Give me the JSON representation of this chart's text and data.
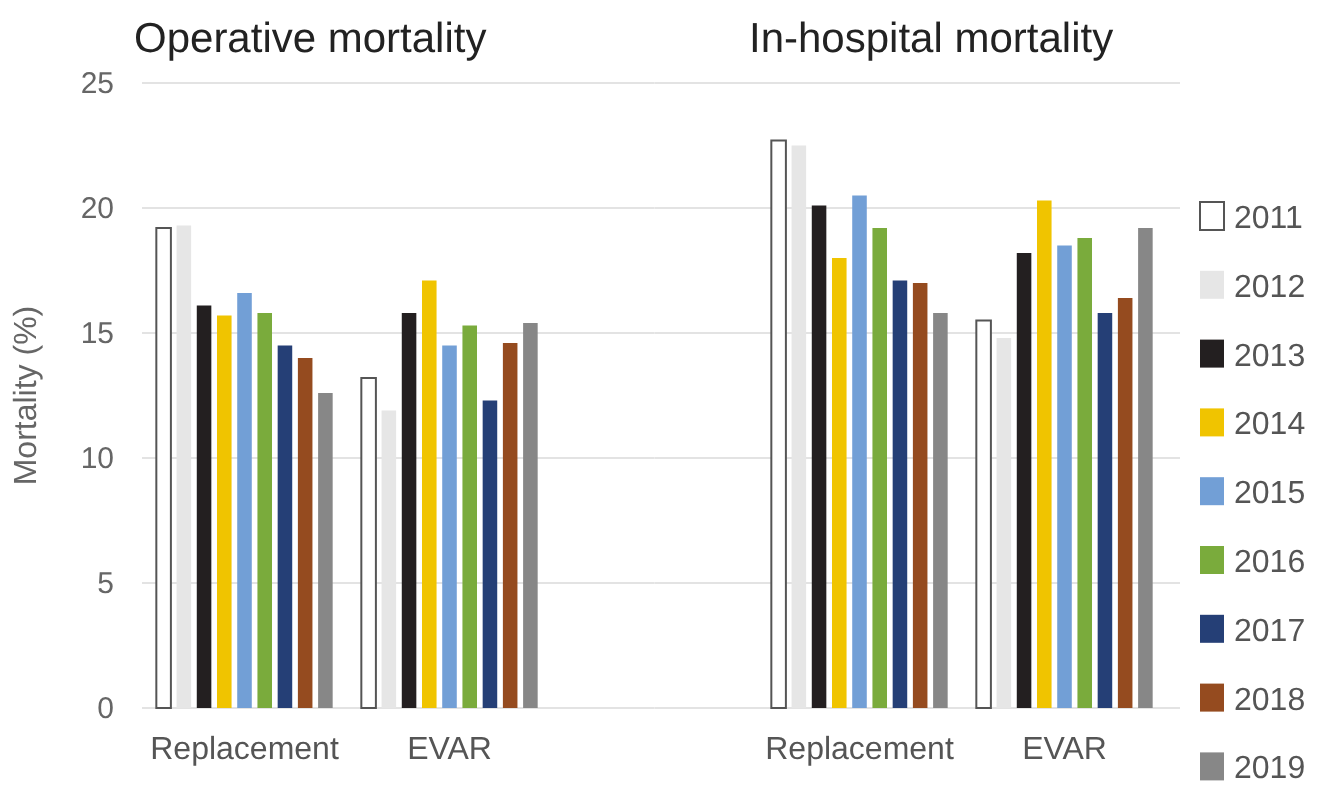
{
  "chart_data": [
    {
      "type": "bar",
      "title": "Operative mortality",
      "ylabel": "Mortality (%)",
      "categories": [
        "Replacement",
        "EVAR"
      ],
      "ylim": [
        0,
        25
      ],
      "yticks": [
        0,
        5,
        10,
        15,
        20,
        25
      ],
      "grid": "y",
      "legend": "right",
      "series": [
        {
          "name": "2011",
          "color": "#ffffff",
          "values": [
            19.2,
            13.2
          ]
        },
        {
          "name": "2012",
          "color": "#e6e6e6",
          "values": [
            19.3,
            11.9
          ]
        },
        {
          "name": "2013",
          "color": "#231f20",
          "values": [
            16.1,
            15.8
          ]
        },
        {
          "name": "2014",
          "color": "#f0c400",
          "values": [
            15.7,
            17.1
          ]
        },
        {
          "name": "2015",
          "color": "#729fd6",
          "values": [
            16.6,
            14.5
          ]
        },
        {
          "name": "2016",
          "color": "#7aab3c",
          "values": [
            15.8,
            15.3
          ]
        },
        {
          "name": "2017",
          "color": "#253f76",
          "values": [
            14.5,
            12.3
          ]
        },
        {
          "name": "2018",
          "color": "#954b1f",
          "values": [
            14.0,
            14.6
          ]
        },
        {
          "name": "2019",
          "color": "#878787",
          "values": [
            12.6,
            15.4
          ]
        }
      ]
    },
    {
      "type": "bar",
      "title": "In-hospital mortality",
      "categories": [
        "Replacement",
        "EVAR"
      ],
      "ylim": [
        0,
        25
      ],
      "yticks": [
        0,
        5,
        10,
        15,
        20,
        25
      ],
      "grid": "y",
      "tick_labels": "x",
      "series": [
        {
          "color": "#ffffff",
          "values": [
            22.7,
            15.5
          ]
        },
        {
          "color": "#e6e6e6",
          "values": [
            22.5,
            14.8
          ]
        },
        {
          "color": "#231f20",
          "values": [
            20.1,
            18.2
          ]
        },
        {
          "color": "#f0c400",
          "values": [
            18.0,
            20.3
          ]
        },
        {
          "color": "#729fd6",
          "values": [
            20.5,
            18.5
          ]
        },
        {
          "color": "#7aab3c",
          "values": [
            19.2,
            18.8
          ]
        },
        {
          "color": "#253f76",
          "values": [
            17.1,
            15.8
          ]
        },
        {
          "color": "#954b1f",
          "values": [
            17.0,
            16.4
          ]
        },
        {
          "color": "#878787",
          "values": [
            15.8,
            19.2
          ]
        }
      ]
    }
  ]
}
